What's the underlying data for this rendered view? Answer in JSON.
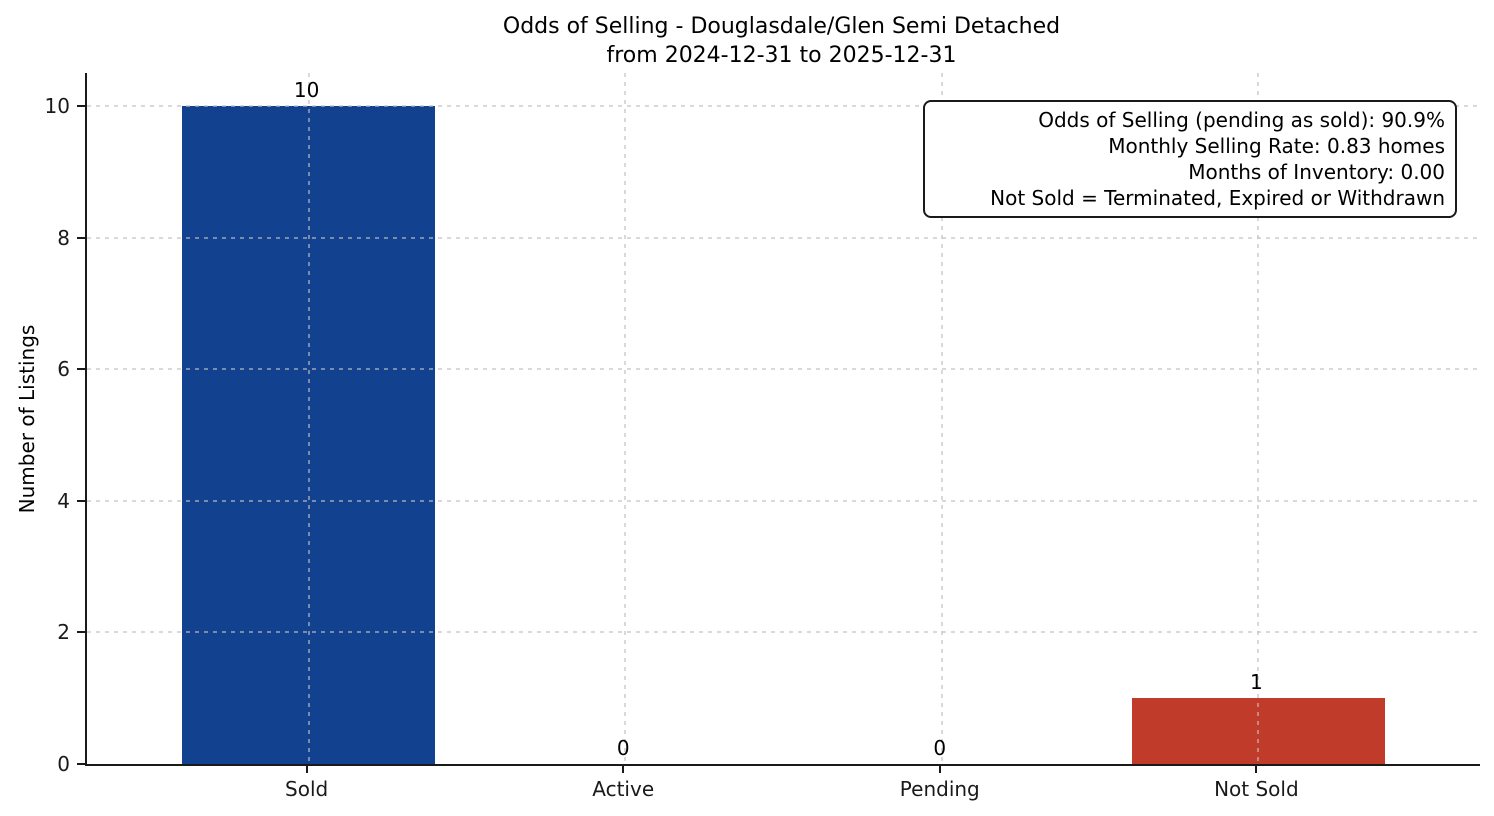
{
  "chart_data": {
    "type": "bar",
    "title": "Odds of Selling - Douglasdale/Glen Semi Detached",
    "subtitle": "from 2024-12-31 to 2025-12-31",
    "categories": [
      "Sold",
      "Active",
      "Pending",
      "Not Sold"
    ],
    "values": [
      10,
      0,
      0,
      1
    ],
    "value_labels": [
      "10",
      "0",
      "0",
      "1"
    ],
    "bar_colors": [
      "#11418F",
      null,
      null,
      "#C13B2B"
    ],
    "bar_width_fraction": 0.8,
    "xlabel": "",
    "ylabel": "Number of Listings",
    "ylim": [
      0,
      10.5
    ],
    "yticks": [
      0,
      2,
      4,
      6,
      8,
      10
    ],
    "grid": "dashed, horizontal and vertical",
    "legend": "none",
    "annotation": {
      "position": "top-right",
      "lines": [
        "Odds of Selling (pending as sold): 90.9%",
        "Monthly Selling Rate: 0.83 homes",
        "Months of Inventory: 0.00",
        "Not Sold = Terminated, Expired or Withdrawn"
      ]
    },
    "colors": {
      "sold_bar": "#11418F",
      "not_sold_bar": "#C13B2B",
      "grid": "#D9D9D9",
      "spine": "#1A1A1A",
      "text": "#000000",
      "background": "#FFFFFF"
    }
  }
}
